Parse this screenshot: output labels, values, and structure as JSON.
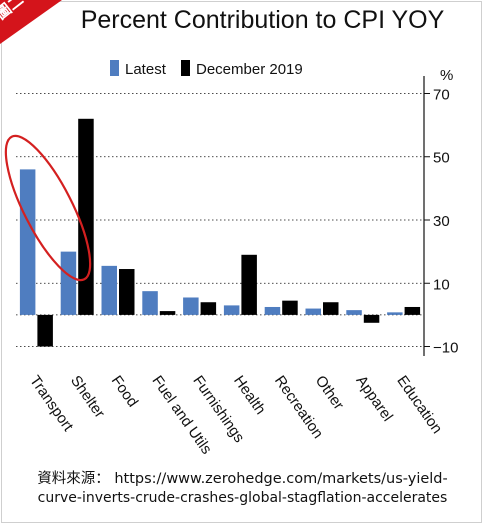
{
  "badge": {
    "label": "圖二"
  },
  "source": {
    "prefix": "資料來源：",
    "url_line1": "https://www.zerohedge.com/markets/us-yield-",
    "url_line2": "curve-inverts-crude-crashes-global-stagflation-accelerates"
  },
  "colors": {
    "latest": "#4f7dc0",
    "december_2019": "#000000",
    "highlight": "#d42020",
    "badge": "#d4141b"
  },
  "chart_data": {
    "type": "bar",
    "title": "Percent Contribution to CPI YOY",
    "unit_label": "%",
    "categories": [
      "Transport",
      "Shelter",
      "Food",
      "Fuel and Utils",
      "Furnishings",
      "Health",
      "Recreation",
      "Other",
      "Apparel",
      "Education"
    ],
    "series": [
      {
        "name": "Latest",
        "values": [
          46,
          20,
          15.5,
          7.5,
          5.5,
          3,
          2.5,
          2,
          1.5,
          0.8
        ]
      },
      {
        "name": "December 2019",
        "values": [
          -10,
          62,
          14.5,
          1.2,
          4,
          19,
          4.5,
          4,
          -2.5,
          2.5
        ]
      }
    ],
    "yticks": [
      -10,
      10,
      30,
      50,
      70
    ],
    "ylim": [
      -13,
      73
    ],
    "axis_side": "right",
    "legend_position": "top-left",
    "annotation": "red ellipse circling the Transport and Shelter bars"
  }
}
